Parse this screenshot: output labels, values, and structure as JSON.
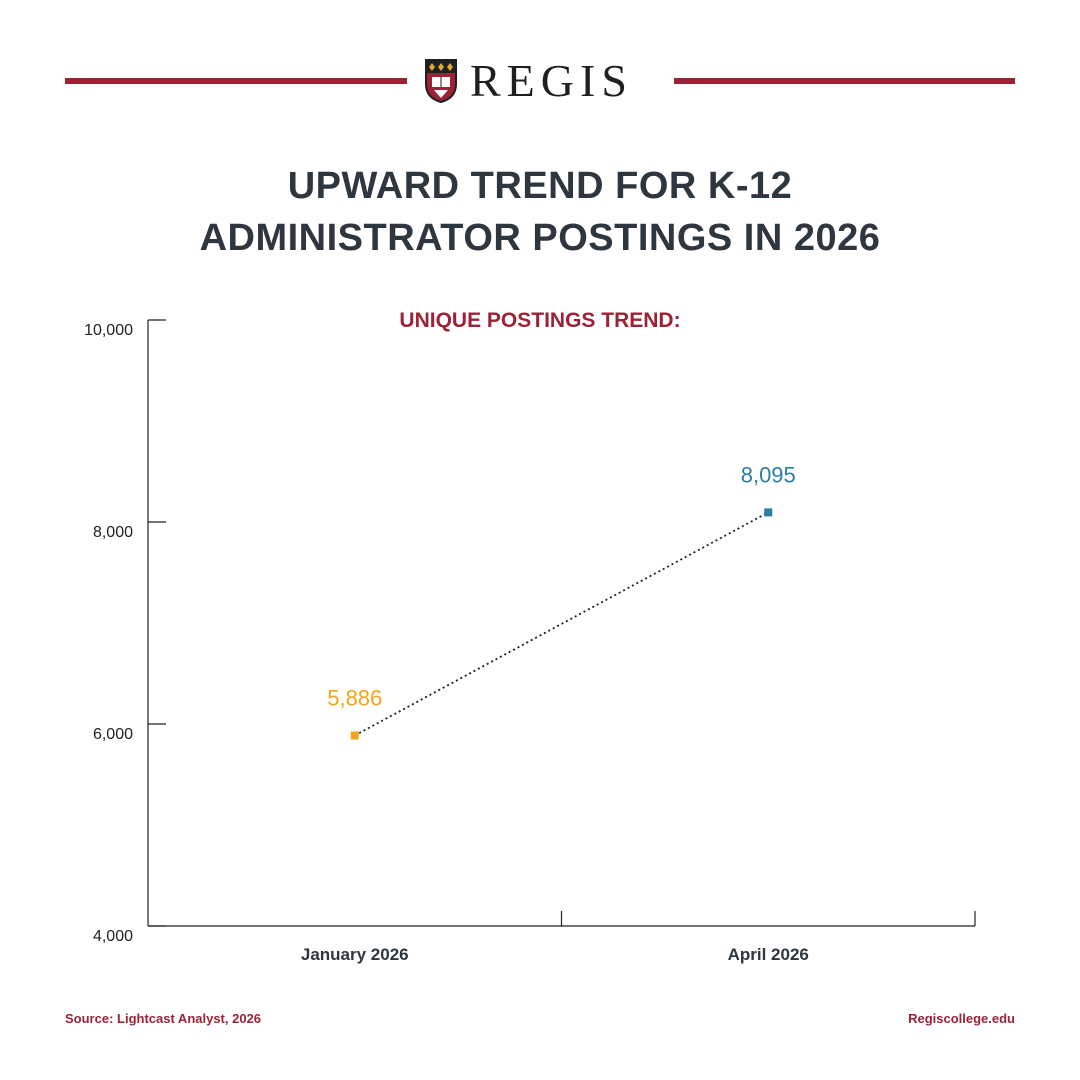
{
  "brand": {
    "name": "REGIS",
    "accent_color": "#9b2335",
    "text_color": "#2e3740"
  },
  "header": {
    "title_line1": "UPWARD TREND FOR K-12",
    "title_line2": "ADMINISTRATOR POSTINGS IN 2026"
  },
  "chart_data": {
    "type": "line",
    "title": "UNIQUE POSTINGS TREND:",
    "categories": [
      "January 2026",
      "April 2026"
    ],
    "series": [
      {
        "values": [
          5886,
          8095
        ],
        "point_labels": [
          "5,886",
          "8,095"
        ],
        "point_colors": [
          "#f2a51a",
          "#2c7ea3"
        ],
        "line_style": "dotted"
      }
    ],
    "y_ticks": [
      "4,000",
      "6,000",
      "8,000",
      "10,000"
    ],
    "y_tick_values": [
      4000,
      6000,
      8000,
      10000
    ],
    "ylim": [
      4000,
      10000
    ],
    "grid": false
  },
  "footer": {
    "source": "Source: Lightcast Analyst, 2026",
    "site": "Regiscollege.edu"
  }
}
